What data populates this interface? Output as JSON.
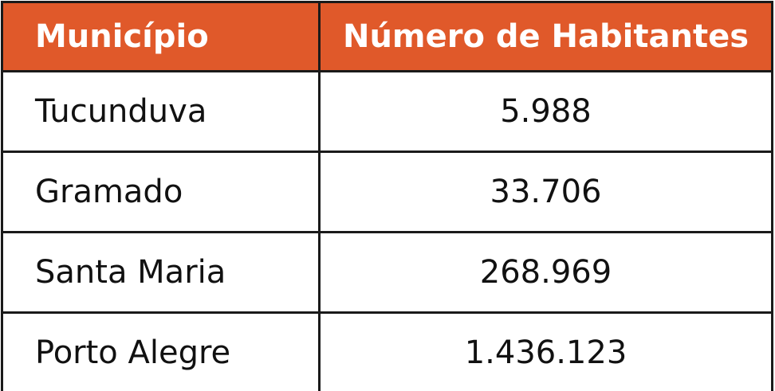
{
  "table": {
    "header": [
      "Município",
      "Número de Habitantes"
    ],
    "rows": [
      [
        "Tucunduva",
        "5.988"
      ],
      [
        "Gramado",
        "33.706"
      ],
      [
        "Santa Maria",
        "268.969"
      ],
      [
        "Porto Alegre",
        "1.436.123"
      ]
    ]
  }
}
